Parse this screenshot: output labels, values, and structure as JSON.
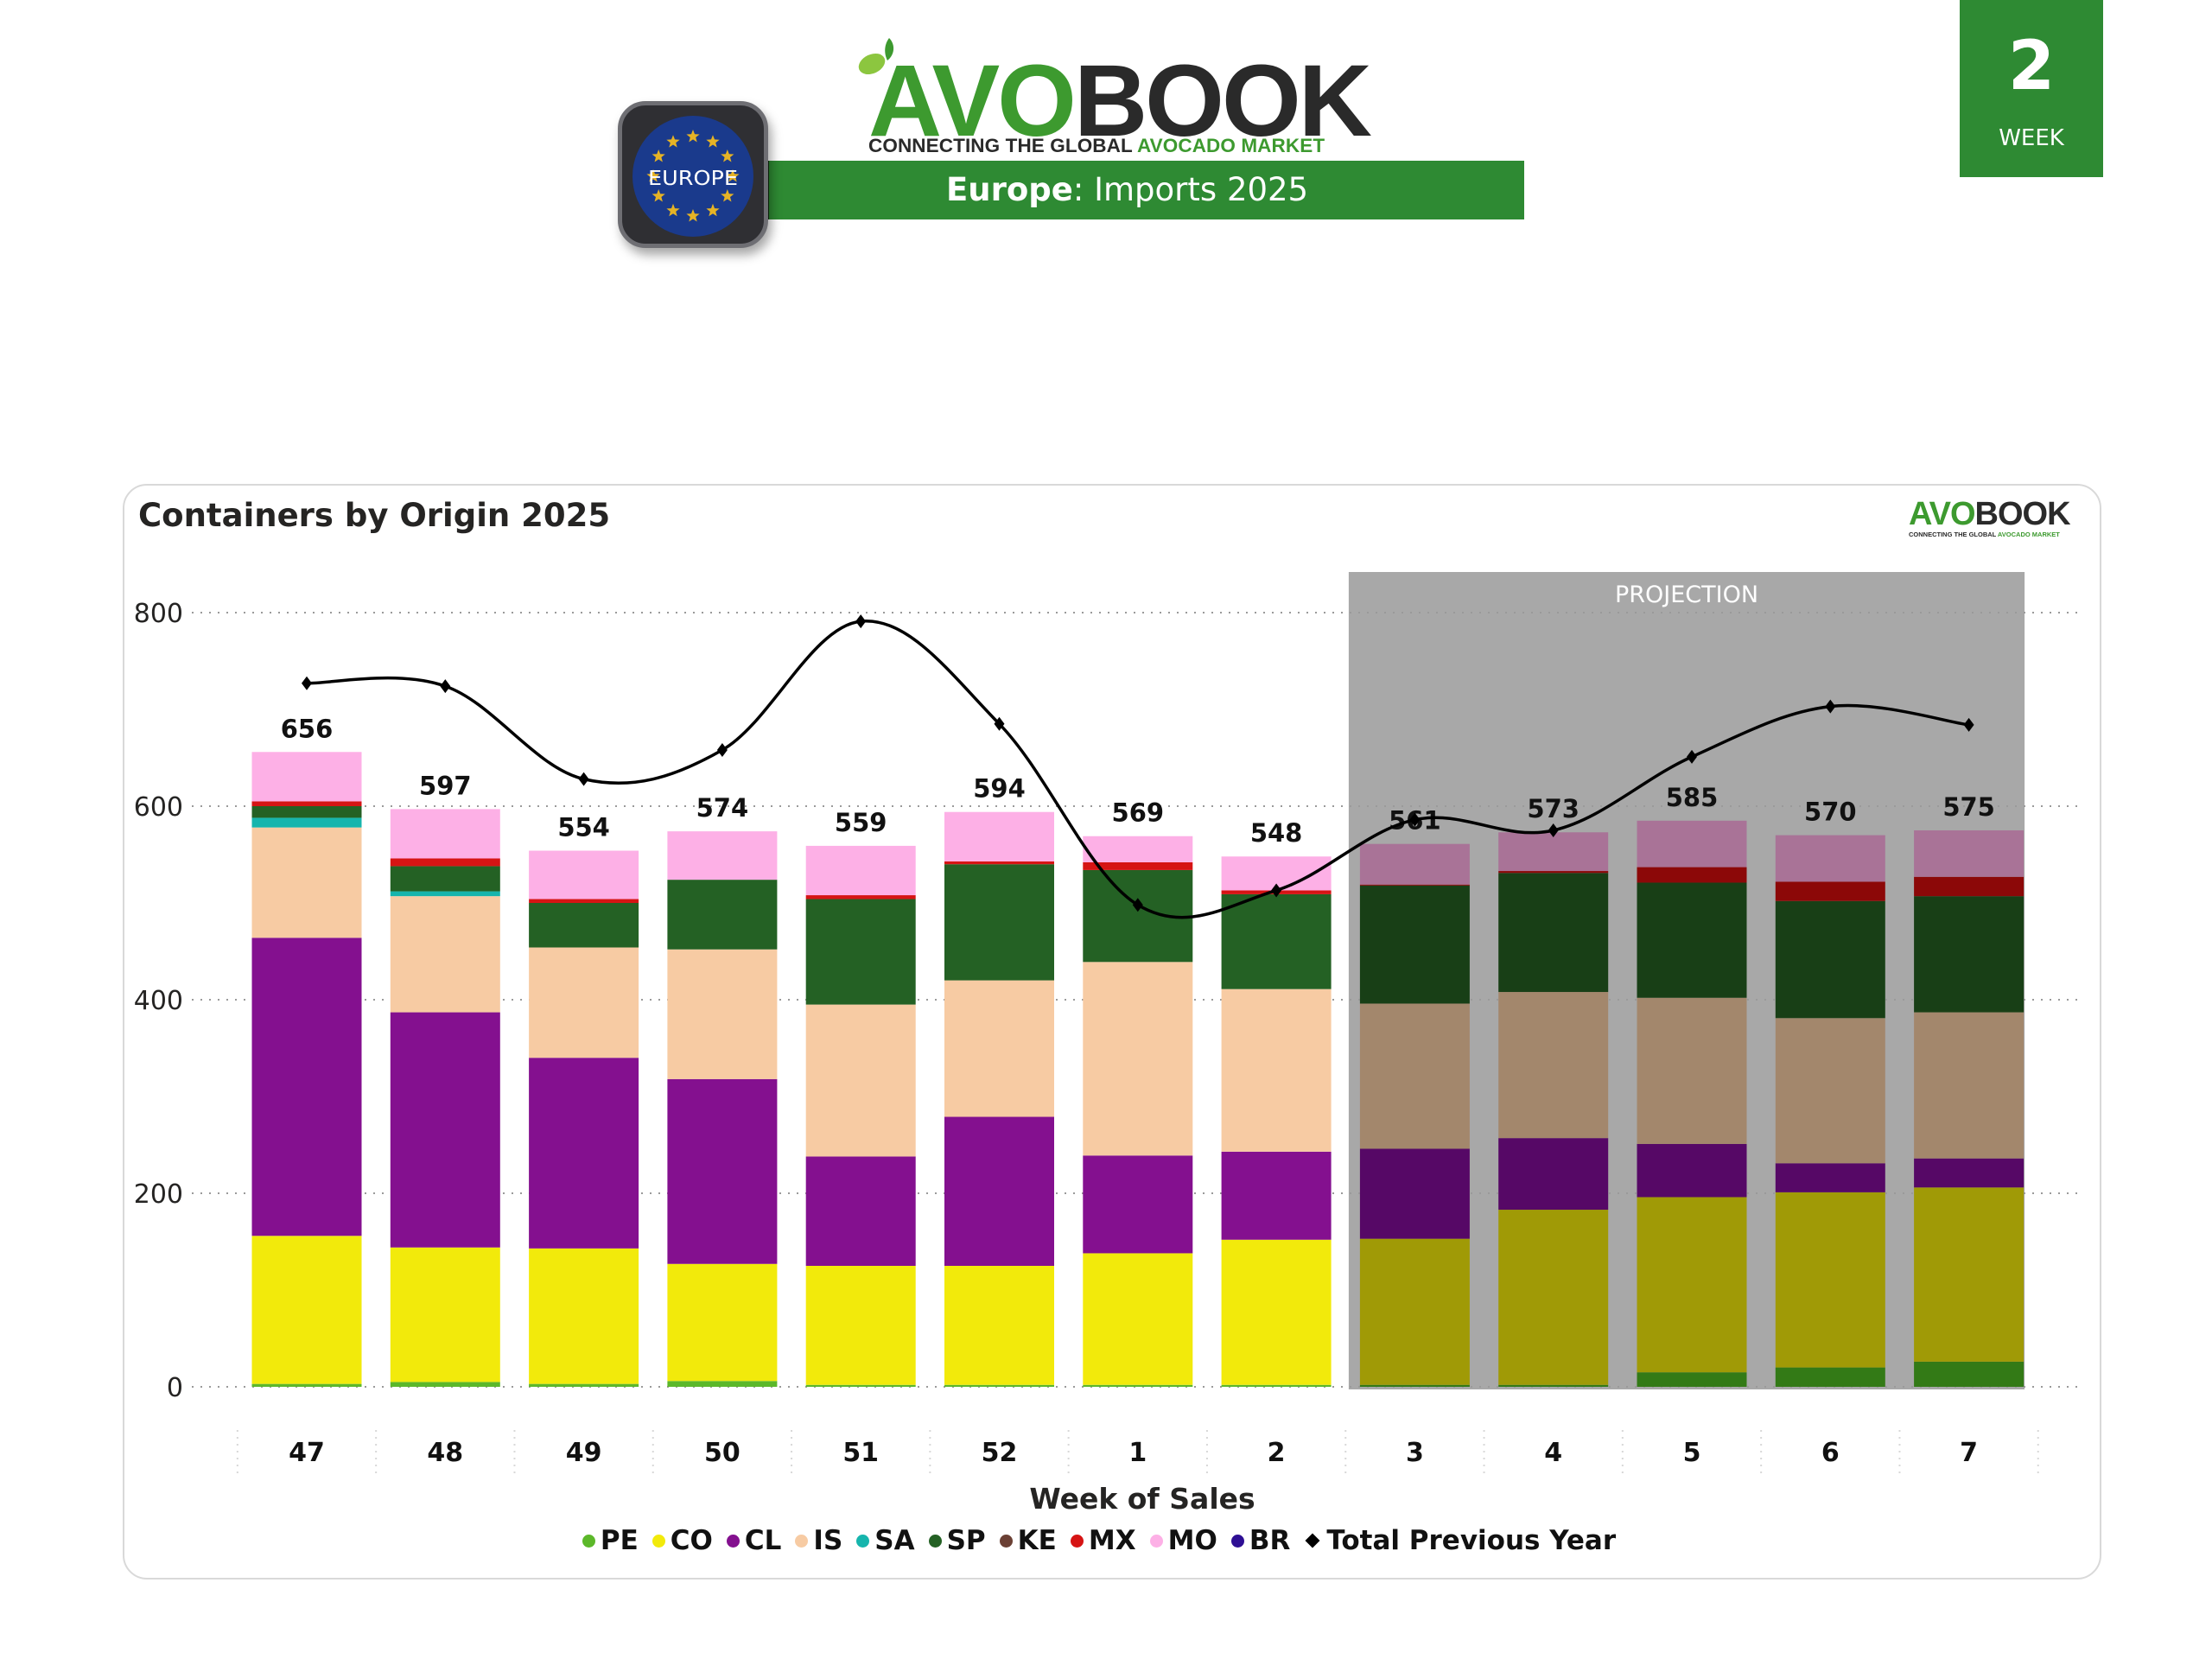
{
  "header": {
    "brand_part1": "AVO",
    "brand_part2": "BOOK",
    "tagline_part1": "CONNECTING THE GLOBAL ",
    "tagline_part2": "AVOCADO MARKET",
    "region_badge": "EUROPE",
    "title_bold": "Europe",
    "title_rest": ": Imports 2025",
    "week_number": "2",
    "week_label": "WEEK"
  },
  "colors": {
    "brand_green": "#2e8a33",
    "logo_green": "#3d9a2f",
    "eu_blue": "#1a3a8c",
    "eu_star": "#e6b325",
    "projection_bg": "#a8a8a8"
  },
  "chart_data": {
    "type": "bar",
    "stacked": true,
    "title": "Containers by Origin 2025",
    "xlabel": "Week of Sales",
    "ylabel": "",
    "ylim": [
      0,
      800
    ],
    "yticks": [
      0,
      200,
      400,
      600,
      800
    ],
    "grid": true,
    "legend_position": "bottom",
    "categories": [
      "47",
      "48",
      "49",
      "50",
      "51",
      "52",
      "1",
      "2",
      "3",
      "4",
      "5",
      "6",
      "7"
    ],
    "projection": {
      "label": "PROJECTION",
      "from_category": "3",
      "to_category": "7"
    },
    "totals": [
      656,
      597,
      554,
      574,
      559,
      594,
      569,
      548,
      561,
      573,
      585,
      570,
      575
    ],
    "series": [
      {
        "name": "PE",
        "color": "#5cb82a",
        "projection_color": "#337a16",
        "values": [
          3,
          5,
          3,
          6,
          2,
          2,
          2,
          2,
          2,
          2,
          15,
          20,
          26
        ]
      },
      {
        "name": "CO",
        "color": "#f2ea0b",
        "projection_color": "#a09a06",
        "values": [
          153,
          139,
          140,
          121,
          123,
          123,
          136,
          150,
          151,
          181,
          181,
          181,
          180
        ]
      },
      {
        "name": "CL",
        "color": "#84108f",
        "projection_color": "#560866",
        "values": [
          308,
          243,
          197,
          191,
          113,
          154,
          101,
          91,
          93,
          74,
          55,
          30,
          30
        ]
      },
      {
        "name": "IS",
        "color": "#f7cba3",
        "projection_color": "#a3876c",
        "values": [
          114,
          120,
          114,
          134,
          157,
          141,
          200,
          168,
          150,
          151,
          151,
          150,
          151
        ]
      },
      {
        "name": "SA",
        "color": "#16b5ad",
        "projection_color": "#0e7772",
        "values": [
          10,
          5,
          0,
          0,
          0,
          0,
          0,
          0,
          0,
          0,
          0,
          0,
          0
        ]
      },
      {
        "name": "SP",
        "color": "#246124",
        "projection_color": "#183f16",
        "values": [
          12,
          26,
          46,
          72,
          109,
          120,
          95,
          98,
          122,
          123,
          119,
          121,
          120
        ]
      },
      {
        "name": "KE",
        "color": "#6b4034",
        "projection_color": "#4a2c23",
        "values": [
          0,
          0,
          0,
          0,
          0,
          0,
          0,
          0,
          0,
          0,
          0,
          0,
          0
        ]
      },
      {
        "name": "MX",
        "color": "#d61414",
        "projection_color": "#8c0808",
        "values": [
          5,
          8,
          4,
          0,
          4,
          3,
          8,
          4,
          1,
          2,
          16,
          20,
          20
        ]
      },
      {
        "name": "MO",
        "color": "#fdb0e6",
        "projection_color": "#a97397",
        "values": [
          51,
          51,
          50,
          50,
          51,
          51,
          27,
          35,
          42,
          40,
          48,
          48,
          48
        ]
      },
      {
        "name": "BR",
        "color": "#2e0f94",
        "projection_color": "#2e0f94",
        "values": [
          0,
          0,
          0,
          0,
          0,
          0,
          0,
          0,
          0,
          0,
          0,
          0,
          0
        ]
      }
    ],
    "line_series": {
      "name": "Total Previous Year",
      "color": "#000000",
      "values": [
        727,
        724,
        628,
        658,
        791,
        685,
        498,
        513,
        586,
        575,
        651,
        703,
        684
      ]
    }
  }
}
